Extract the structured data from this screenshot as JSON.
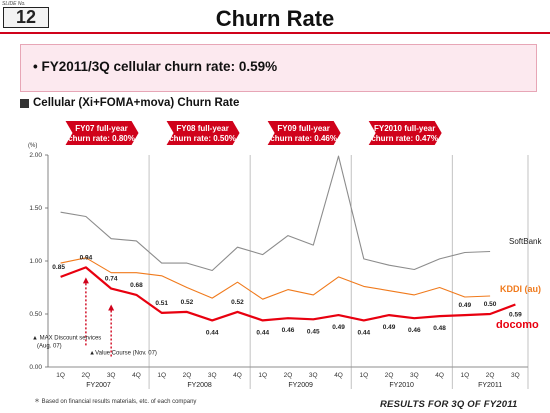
{
  "slide": {
    "slide_no_label": "SLIDE No.",
    "slide_number": "12",
    "title": "Churn Rate",
    "summary": "•  FY2011/3Q  cellular churn rate: 0.59%",
    "section_title": "Cellular (Xi+FOMA+mova) Churn Rate",
    "footnote": "＊ Based on financial results materials, etc. of each company",
    "footer": "RESULTS FOR 3Q OF FY2011"
  },
  "colors": {
    "accent": "#d0021b",
    "docomo": "#e8000f",
    "kddi": "#f07a1c",
    "softbank": "#8c8c8c",
    "callout": "#d0021b"
  },
  "callouts": [
    {
      "line1": "FY07 full-year",
      "line2": "churn rate: 0.80%"
    },
    {
      "line1": "FY08 full-year",
      "line2": "churn rate: 0.50%"
    },
    {
      "line1": "FY09 full-year",
      "line2": "churn rate: 0.46%"
    },
    {
      "line1": "FY2010 full-year",
      "line2": "churn rate: 0.47%"
    }
  ],
  "chart_data": {
    "type": "line",
    "ylabel": "(%)",
    "ylim": [
      0,
      2.0
    ],
    "yticks": [
      "0.00",
      "0.50",
      "1.00",
      "1.50",
      "2.00"
    ],
    "categories": [
      "1Q",
      "2Q",
      "3Q",
      "4Q",
      "1Q",
      "2Q",
      "3Q",
      "4Q",
      "1Q",
      "2Q",
      "3Q",
      "4Q",
      "1Q",
      "2Q",
      "3Q",
      "4Q",
      "1Q",
      "2Q",
      "3Q"
    ],
    "fiscal_years": [
      "FY2007",
      "FY2008",
      "FY2009",
      "FY2010",
      "FY2011"
    ],
    "grid": false,
    "series": [
      {
        "name": "SoftBank",
        "values": [
          1.46,
          1.42,
          1.21,
          1.19,
          0.98,
          0.98,
          0.91,
          1.13,
          1.06,
          1.24,
          1.15,
          1.99,
          1.02,
          0.96,
          0.92,
          1.02,
          1.08,
          1.09,
          null
        ]
      },
      {
        "name": "KDDI (au)",
        "values": [
          0.98,
          1.03,
          0.89,
          0.89,
          0.86,
          0.75,
          0.65,
          0.8,
          0.64,
          0.73,
          0.68,
          0.85,
          0.76,
          0.72,
          0.68,
          0.75,
          0.66,
          0.67,
          null
        ]
      },
      {
        "name": "docomo",
        "values": [
          0.85,
          0.94,
          0.74,
          0.68,
          0.51,
          0.52,
          0.44,
          0.52,
          0.44,
          0.46,
          0.45,
          0.49,
          0.44,
          0.49,
          0.46,
          0.48,
          0.49,
          0.5,
          0.59
        ]
      }
    ],
    "data_labels": [
      "0.85",
      "0.94",
      "0.74",
      "0.68",
      "0.51",
      "0.52",
      "0.44",
      "0.52",
      "0.44",
      "0.46",
      "0.45",
      "0.49",
      "0.44",
      "0.49",
      "0.46",
      "0.48",
      "0.49",
      "0.50",
      "0.59"
    ],
    "annotations": [
      {
        "index": 1,
        "text1": "▲ MAX Discount services",
        "text2": "(Aug. 07)"
      },
      {
        "index": 2,
        "text1": "▲Value Course (Nov. 07)",
        "text2": ""
      }
    ]
  }
}
